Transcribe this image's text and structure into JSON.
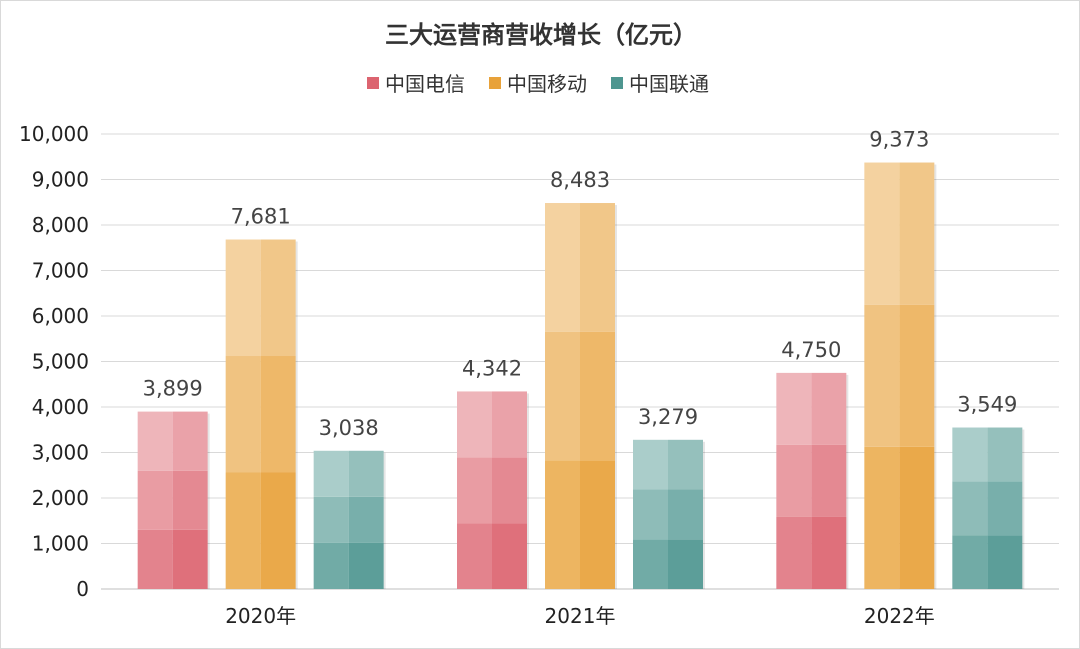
{
  "chart_data": {
    "type": "bar",
    "title": "三大运营商营收增长（亿元）",
    "categories": [
      "2020年",
      "2021年",
      "2022年"
    ],
    "series": [
      {
        "name": "中国电信",
        "values": [
          3899,
          4342,
          4750
        ],
        "color": "#dc6470",
        "color_light": "#f0b3b9"
      },
      {
        "name": "中国移动",
        "values": [
          7681,
          8483,
          9373
        ],
        "color": "#e8a23a",
        "color_light": "#f7d09a"
      },
      {
        "name": "中国联通",
        "values": [
          3038,
          3279,
          3549
        ],
        "color": "#4e9690",
        "color_light": "#9fcfcb"
      }
    ],
    "ylim": [
      0,
      10000
    ],
    "yticks": [
      "0",
      "1,000",
      "2,000",
      "3,000",
      "4,000",
      "5,000",
      "6,000",
      "7,000",
      "8,000",
      "9,000",
      "10,000"
    ],
    "data_labels": [
      [
        "3,899",
        "4,342",
        "4,750"
      ],
      [
        "7,681",
        "8,483",
        "9,373"
      ],
      [
        "3,038",
        "3,279",
        "3,549"
      ]
    ],
    "grid": true,
    "legend_position": "top"
  }
}
